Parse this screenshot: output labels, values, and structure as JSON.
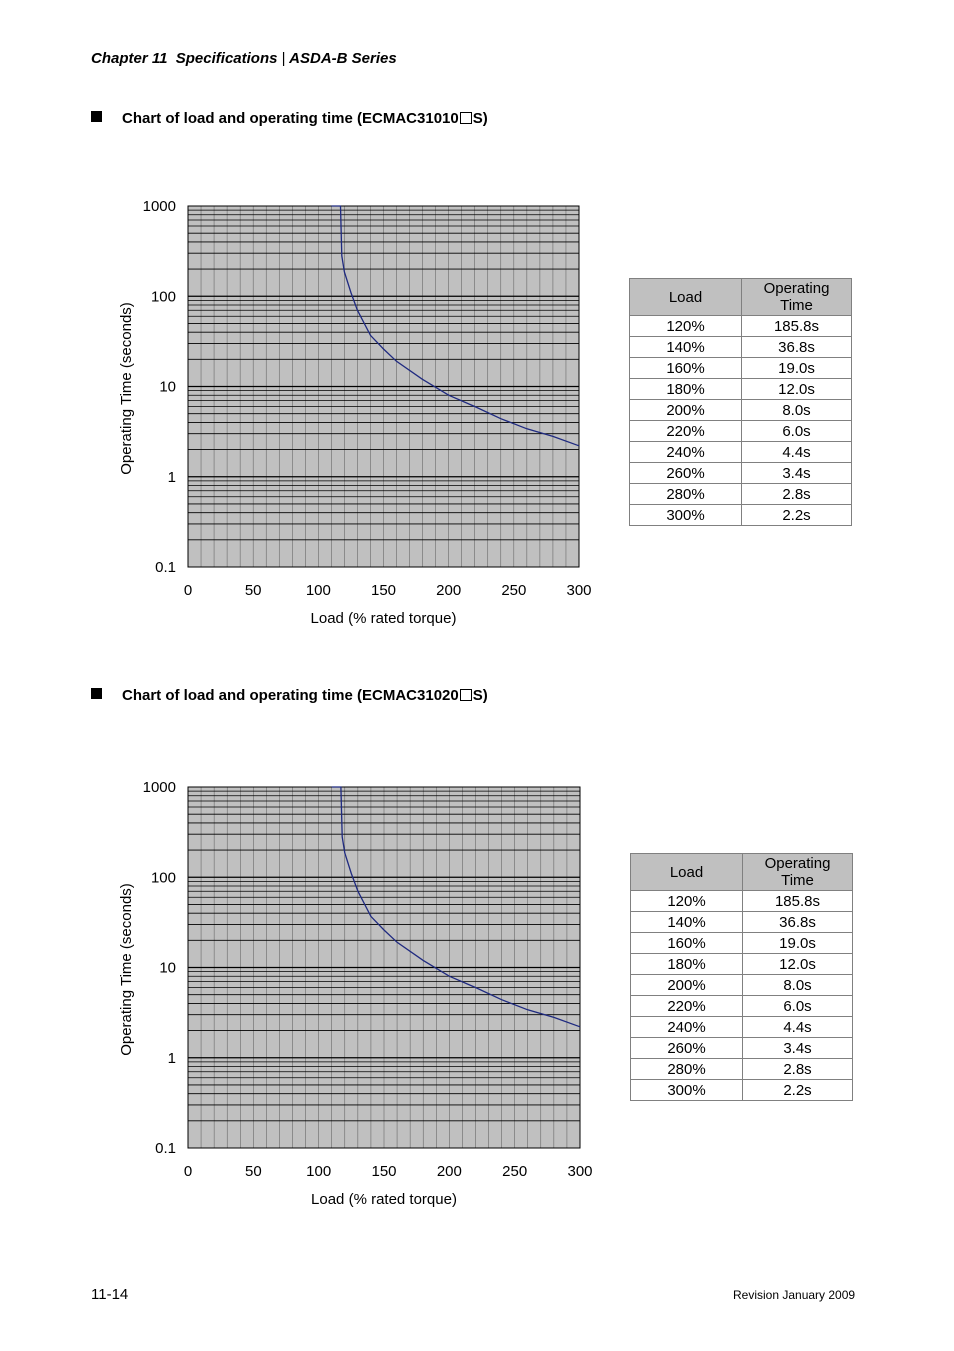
{
  "header": {
    "chapter": "Chapter 11",
    "title": "Specifications",
    "separator": "|",
    "series": "ASDA-B Series"
  },
  "sections": [
    {
      "title_prefix": "Chart of load and operating time (ECMAC31010",
      "title_suffix": "S)"
    },
    {
      "title_prefix": "Chart of load and operating time (ECMAC31020",
      "title_suffix": "S)"
    }
  ],
  "chart_data": [
    {
      "type": "line",
      "title": "Chart of load and operating time (ECMAC31010□S)",
      "xlabel": "Load (% rated torque)",
      "ylabel": "Operating Time (seconds)",
      "xlim": [
        0,
        300
      ],
      "ylim": [
        0.1,
        1000
      ],
      "yscale": "log",
      "x_ticks": [
        "0",
        "50",
        "100",
        "150",
        "200",
        "250",
        "300"
      ],
      "y_ticks": [
        "0.1",
        "1",
        "10",
        "100",
        "1000"
      ],
      "grid": true,
      "series": [
        {
          "name": "Operating Time",
          "x": [
            110,
            117,
            118,
            120,
            125,
            130,
            140,
            150,
            160,
            180,
            200,
            220,
            240,
            260,
            280,
            300
          ],
          "y": [
            1000,
            1000,
            280,
            185.8,
            110,
            70,
            36.8,
            26,
            19.0,
            12.0,
            8.0,
            6.0,
            4.4,
            3.4,
            2.8,
            2.2
          ]
        }
      ]
    },
    {
      "type": "line",
      "title": "Chart of load and operating time (ECMAC31020□S)",
      "xlabel": "Load (% rated torque)",
      "ylabel": "Operating Time (seconds)",
      "xlim": [
        0,
        300
      ],
      "ylim": [
        0.1,
        1000
      ],
      "yscale": "log",
      "x_ticks": [
        "0",
        "50",
        "100",
        "150",
        "200",
        "250",
        "300"
      ],
      "y_ticks": [
        "0.1",
        "1",
        "10",
        "100",
        "1000"
      ],
      "grid": true,
      "series": [
        {
          "name": "Operating Time",
          "x": [
            110,
            117,
            118,
            120,
            125,
            130,
            140,
            150,
            160,
            180,
            200,
            220,
            240,
            260,
            280,
            300
          ],
          "y": [
            1000,
            1000,
            280,
            185.8,
            110,
            70,
            36.8,
            26,
            19.0,
            12.0,
            8.0,
            6.0,
            4.4,
            3.4,
            2.8,
            2.2
          ]
        }
      ]
    }
  ],
  "tables": [
    {
      "headers": [
        "Load",
        "Operating\nTime"
      ],
      "rows": [
        [
          "120%",
          "185.8s"
        ],
        [
          "140%",
          "36.8s"
        ],
        [
          "160%",
          "19.0s"
        ],
        [
          "180%",
          "12.0s"
        ],
        [
          "200%",
          "8.0s"
        ],
        [
          "220%",
          "6.0s"
        ],
        [
          "240%",
          "4.4s"
        ],
        [
          "260%",
          "3.4s"
        ],
        [
          "280%",
          "2.8s"
        ],
        [
          "300%",
          "2.2s"
        ]
      ]
    },
    {
      "headers": [
        "Load",
        "Operating\nTime"
      ],
      "rows": [
        [
          "120%",
          "185.8s"
        ],
        [
          "140%",
          "36.8s"
        ],
        [
          "160%",
          "19.0s"
        ],
        [
          "180%",
          "12.0s"
        ],
        [
          "200%",
          "8.0s"
        ],
        [
          "220%",
          "6.0s"
        ],
        [
          "240%",
          "4.4s"
        ],
        [
          "260%",
          "3.4s"
        ],
        [
          "280%",
          "2.8s"
        ],
        [
          "300%",
          "2.2s"
        ]
      ]
    }
  ],
  "colors": {
    "plot_bg": "#c0c0c0",
    "curve": "#1f2a80",
    "grid": "#000000"
  },
  "footer": {
    "page_number": "11-14",
    "revision": "Revision January 2009"
  }
}
